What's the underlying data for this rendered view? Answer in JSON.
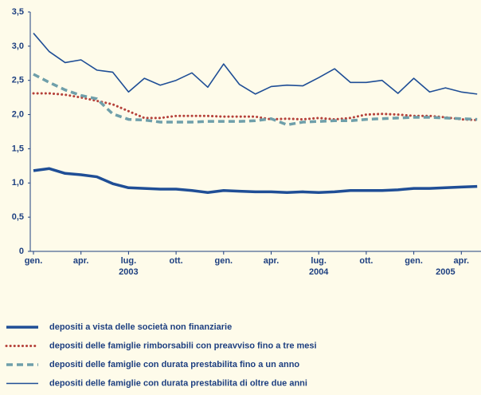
{
  "chart_data": {
    "type": "line",
    "categories": [
      "gen.",
      null,
      null,
      "apr.",
      null,
      null,
      "lug.",
      null,
      null,
      "ott.",
      null,
      null,
      "gen.",
      null,
      null,
      "apr.",
      null,
      null,
      "lug.",
      null,
      null,
      "ott.",
      null,
      null,
      "gen.",
      null,
      null,
      "apr.",
      null
    ],
    "x_group_labels": [
      null,
      null,
      null,
      null,
      null,
      null,
      "2003",
      null,
      null,
      null,
      null,
      null,
      null,
      null,
      null,
      null,
      null,
      null,
      "2004",
      null,
      null,
      null,
      null,
      null,
      null,
      null,
      "2005",
      null,
      null
    ],
    "ylim": [
      0,
      3.5
    ],
    "yticks": [
      0,
      {
        "value": 0.5,
        "label": "0,5"
      },
      {
        "value": 1,
        "label": "1,0"
      },
      {
        "value": 1.5,
        "label": "1,5"
      },
      {
        "value": 2,
        "label": "2,0"
      },
      {
        "value": 2.5,
        "label": "2,5"
      },
      {
        "value": 3,
        "label": "3,0"
      },
      {
        "value": 3.5,
        "label": "3,5"
      }
    ],
    "grid": false,
    "series": [
      {
        "name": "depositi a vista delle società non finanziarie",
        "color": "#1f4e96",
        "style": "thick",
        "values": [
          1.18,
          1.21,
          1.14,
          1.12,
          1.09,
          0.99,
          0.93,
          0.92,
          0.91,
          0.91,
          0.89,
          0.86,
          0.89,
          0.88,
          0.87,
          0.87,
          0.86,
          0.87,
          0.86,
          0.87,
          0.89,
          0.89,
          0.89,
          0.9,
          0.92,
          0.92,
          0.93,
          0.94,
          0.95
        ]
      },
      {
        "name": "depositi delle famiglie rimborsabili con preavviso fino a tre mesi",
        "color": "#b5413a",
        "style": "dotted",
        "values": [
          2.31,
          2.31,
          2.29,
          2.25,
          2.2,
          2.15,
          2.05,
          1.95,
          1.95,
          1.98,
          1.98,
          1.98,
          1.97,
          1.97,
          1.97,
          1.93,
          1.94,
          1.93,
          1.95,
          1.93,
          1.95,
          2.0,
          2.01,
          2.0,
          1.98,
          1.98,
          1.96,
          1.93,
          1.92
        ]
      },
      {
        "name": "depositi delle famiglie con durata prestabilita fino a un anno",
        "color": "#6f9faa",
        "style": "dashed",
        "values": [
          2.59,
          2.47,
          2.36,
          2.28,
          2.23,
          2.01,
          1.93,
          1.92,
          1.89,
          1.89,
          1.89,
          1.9,
          1.9,
          1.9,
          1.91,
          1.94,
          1.85,
          1.89,
          1.9,
          1.91,
          1.91,
          1.93,
          1.94,
          1.95,
          1.96,
          1.96,
          1.95,
          1.94,
          1.93
        ]
      },
      {
        "name": "depositi delle famiglie con durata prestabilita di oltre due anni",
        "color": "#1f4e96",
        "style": "thin",
        "values": [
          3.19,
          2.92,
          2.76,
          2.8,
          2.65,
          2.62,
          2.33,
          2.53,
          2.43,
          2.5,
          2.61,
          2.4,
          2.74,
          2.44,
          2.3,
          2.41,
          2.43,
          2.42,
          2.54,
          2.67,
          2.47,
          2.47,
          2.5,
          2.31,
          2.53,
          2.33,
          2.39,
          2.33,
          2.3
        ]
      }
    ]
  }
}
